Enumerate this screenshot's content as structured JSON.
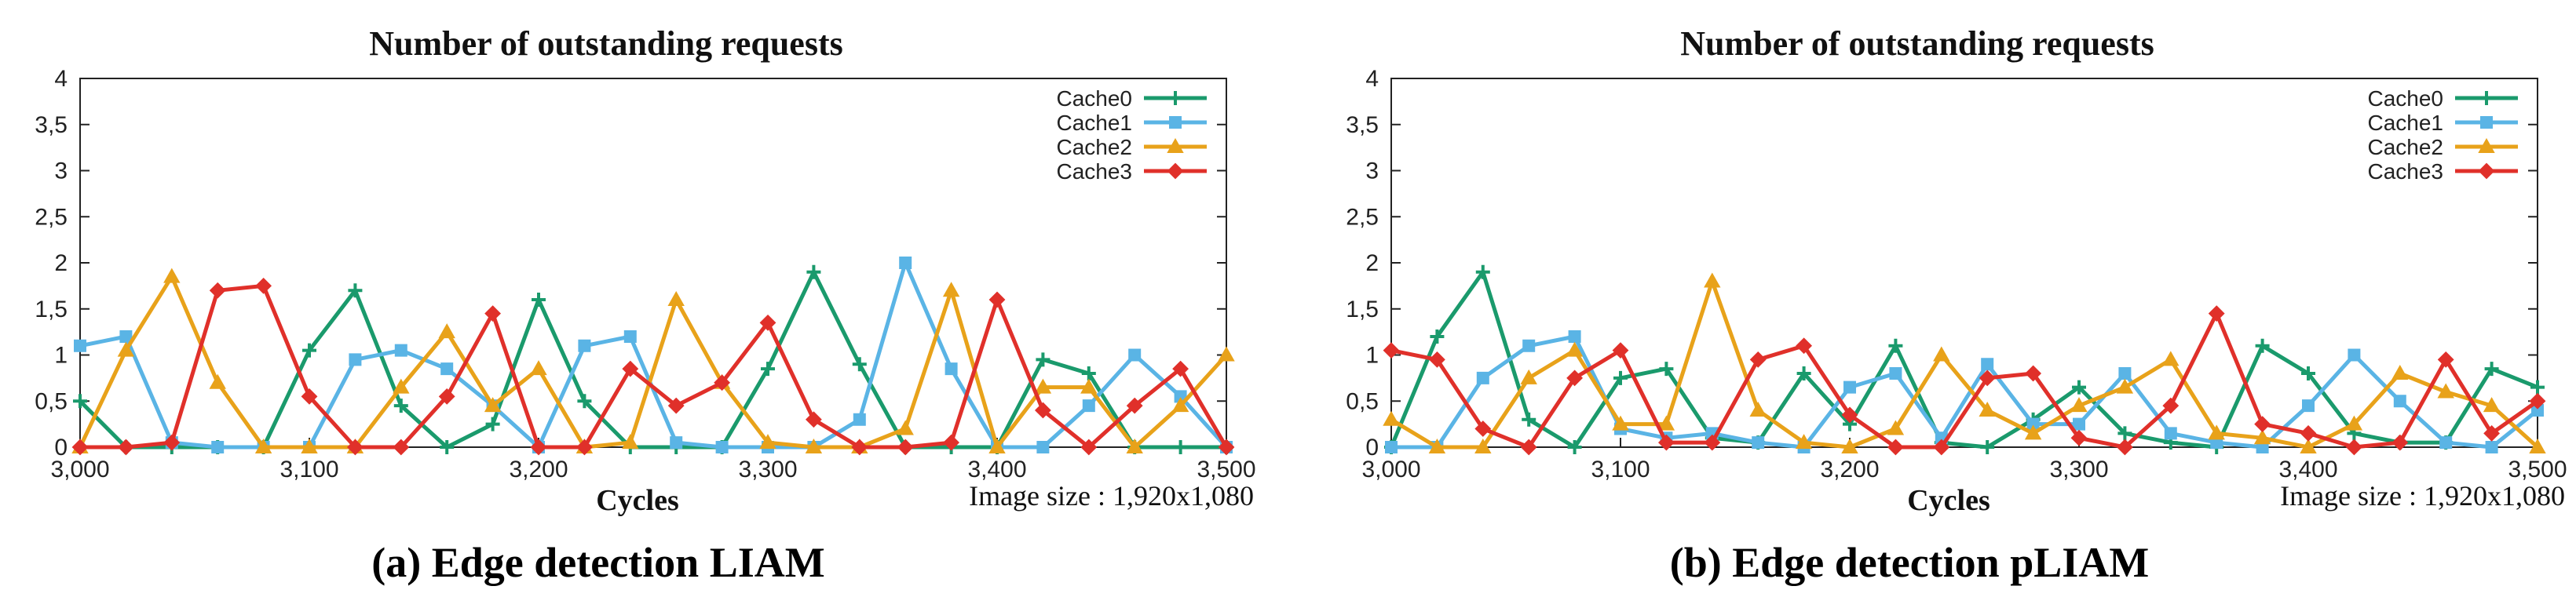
{
  "chart_data": [
    {
      "type": "line",
      "title": "Number of outstanding requests",
      "xlabel": "Cycles",
      "ylabel": "",
      "annotation": "Image size : 1,920x1,080",
      "caption": "(a) Edge detection LIAM",
      "xlim": [
        3000,
        3500
      ],
      "ylim": [
        0,
        4
      ],
      "xticks": [
        3000,
        3100,
        3200,
        3300,
        3400,
        3500
      ],
      "xtick_labels": [
        "3,000",
        "3,100",
        "3,200",
        "3,300",
        "3,400",
        "3,500"
      ],
      "yticks": [
        0,
        0.5,
        1,
        1.5,
        2,
        2.5,
        3,
        3.5,
        4
      ],
      "ytick_labels": [
        "0",
        "0,5",
        "1",
        "1,5",
        "2",
        "2,5",
        "3",
        "3,5",
        "4"
      ],
      "legend_position": "top-right",
      "x": [
        3000,
        3020,
        3040,
        3060,
        3080,
        3100,
        3120,
        3140,
        3160,
        3180,
        3200,
        3220,
        3240,
        3260,
        3280,
        3300,
        3320,
        3340,
        3360,
        3380,
        3400,
        3420,
        3440,
        3460,
        3480,
        3500
      ],
      "series": [
        {
          "name": "Cache0",
          "color": "#1a9a6c",
          "marker": "plus",
          "values": [
            0.5,
            0,
            0,
            0,
            0,
            1.05,
            1.7,
            0.45,
            0,
            0.25,
            1.6,
            0.5,
            0,
            0,
            0,
            0.85,
            1.9,
            0.9,
            0,
            0,
            0,
            0.95,
            0.8,
            0,
            0,
            0
          ]
        },
        {
          "name": "Cache1",
          "color": "#5ab4e5",
          "marker": "square",
          "values": [
            1.1,
            1.2,
            0.05,
            0,
            0,
            0,
            0.95,
            1.05,
            0.85,
            0.45,
            0,
            1.1,
            1.2,
            0.05,
            0,
            0,
            0,
            0.3,
            2.0,
            0.85,
            0,
            0,
            0.45,
            1.0,
            0.55,
            0
          ]
        },
        {
          "name": "Cache2",
          "color": "#e8a21a",
          "marker": "triangle",
          "values": [
            0,
            1.05,
            1.85,
            0.7,
            0,
            0,
            0,
            0.65,
            1.25,
            0.45,
            0.85,
            0,
            0.05,
            1.6,
            0.7,
            0.05,
            0,
            0,
            0.2,
            1.7,
            0,
            0.65,
            0.65,
            0,
            0.45,
            1.0
          ]
        },
        {
          "name": "Cache3",
          "color": "#e0302a",
          "marker": "diamond",
          "values": [
            0,
            0,
            0.05,
            1.7,
            1.75,
            0.55,
            0,
            0,
            0.55,
            1.45,
            0,
            0,
            0.85,
            0.45,
            0.7,
            1.35,
            0.3,
            0,
            0,
            0.05,
            1.6,
            0.4,
            0,
            0.45,
            0.85,
            0
          ]
        }
      ]
    },
    {
      "type": "line",
      "title": "Number of outstanding requests",
      "xlabel": "Cycles",
      "ylabel": "",
      "annotation": "Image size : 1,920x1,080",
      "caption": "(b) Edge detection pLIAM",
      "xlim": [
        3000,
        3500
      ],
      "ylim": [
        0,
        4
      ],
      "xticks": [
        3000,
        3100,
        3200,
        3300,
        3400,
        3500
      ],
      "xtick_labels": [
        "3,000",
        "3,100",
        "3,200",
        "3,300",
        "3,400",
        "3,500"
      ],
      "yticks": [
        0,
        0.5,
        1,
        1.5,
        2,
        2.5,
        3,
        3.5,
        4
      ],
      "ytick_labels": [
        "0",
        "0,5",
        "1",
        "1,5",
        "2",
        "2,5",
        "3",
        "3,5",
        "4"
      ],
      "legend_position": "top-right",
      "x": [
        3000,
        3020,
        3040,
        3060,
        3080,
        3100,
        3120,
        3140,
        3160,
        3180,
        3200,
        3220,
        3240,
        3260,
        3280,
        3300,
        3320,
        3340,
        3360,
        3380,
        3400,
        3420,
        3440,
        3460,
        3480,
        3500
      ],
      "series": [
        {
          "name": "Cache0",
          "color": "#1a9a6c",
          "marker": "plus",
          "values": [
            0,
            1.2,
            1.9,
            0.3,
            0,
            0.75,
            0.85,
            0.1,
            0.05,
            0.8,
            0.25,
            1.1,
            0.05,
            0,
            0.3,
            0.65,
            0.15,
            0.05,
            0,
            1.1,
            0.8,
            0.15,
            0.05,
            0.05,
            0.85,
            0.65
          ]
        },
        {
          "name": "Cache1",
          "color": "#5ab4e5",
          "marker": "square",
          "values": [
            0,
            0,
            0.75,
            1.1,
            1.2,
            0.2,
            0.1,
            0.15,
            0.05,
            0,
            0.65,
            0.8,
            0.1,
            0.9,
            0.25,
            0.25,
            0.8,
            0.15,
            0.05,
            0,
            0.45,
            1.0,
            0.5,
            0.05,
            0,
            0.4
          ]
        },
        {
          "name": "Cache2",
          "color": "#e8a21a",
          "marker": "triangle",
          "values": [
            0.3,
            0,
            0,
            0.75,
            1.05,
            0.25,
            0.25,
            1.8,
            0.4,
            0.05,
            0,
            0.2,
            1.0,
            0.4,
            0.15,
            0.45,
            0.65,
            0.95,
            0.15,
            0.1,
            0,
            0.25,
            0.8,
            0.6,
            0.45,
            0
          ]
        },
        {
          "name": "Cache3",
          "color": "#e0302a",
          "marker": "diamond",
          "values": [
            1.05,
            0.95,
            0.2,
            0,
            0.75,
            1.05,
            0.05,
            0.05,
            0.95,
            1.1,
            0.35,
            0,
            0,
            0.75,
            0.8,
            0.1,
            0,
            0.45,
            1.45,
            0.25,
            0.15,
            0,
            0.05,
            0.95,
            0.15,
            0.5
          ]
        }
      ]
    }
  ]
}
